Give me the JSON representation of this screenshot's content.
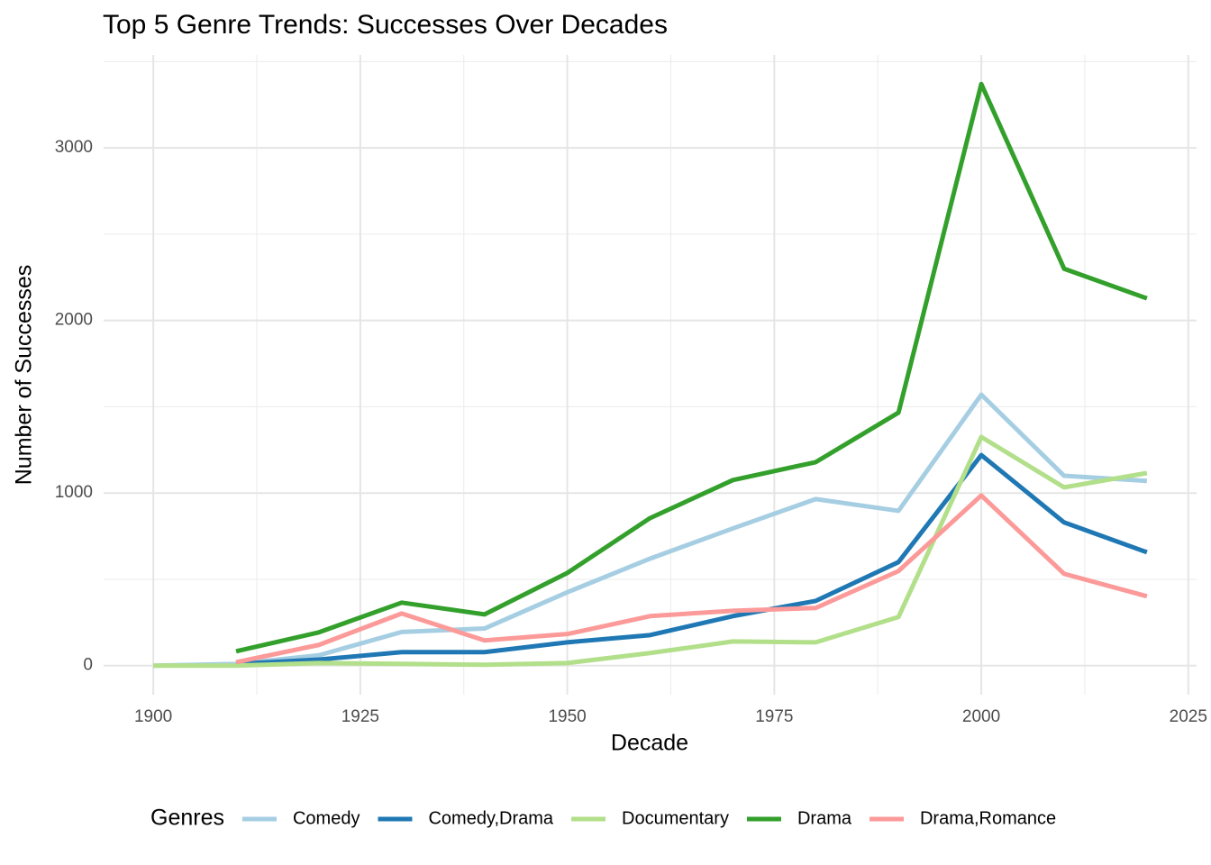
{
  "chart_data": {
    "type": "line",
    "title": "Top 5 Genre Trends: Successes Over Decades",
    "x_label": "Decade",
    "y_label": "Number of Successes",
    "legend_title": "Genres",
    "legend_position": "bottom",
    "grid": true,
    "x": [
      1900,
      1910,
      1920,
      1930,
      1940,
      1950,
      1960,
      1970,
      1980,
      1990,
      2000,
      2010,
      2020
    ],
    "series": [
      {
        "name": "Comedy",
        "color": "#a6cee3",
        "values": [
          0,
          10,
          60,
          195,
          215,
          425,
          620,
          795,
          965,
          897,
          1570,
          1100,
          1070
        ]
      },
      {
        "name": "Comedy,Drama",
        "color": "#1f78b4",
        "values": [
          null,
          10,
          35,
          78,
          78,
          135,
          177,
          287,
          375,
          600,
          1220,
          830,
          657
        ]
      },
      {
        "name": "Documentary",
        "color": "#b2df8a",
        "values": [
          0,
          0,
          15,
          10,
          5,
          15,
          73,
          140,
          135,
          282,
          1325,
          1033,
          1116
        ]
      },
      {
        "name": "Drama",
        "color": "#33a02c",
        "values": [
          null,
          83,
          193,
          365,
          297,
          537,
          855,
          1075,
          1179,
          1466,
          3370,
          2300,
          2128
        ]
      },
      {
        "name": "Drama,Romance",
        "color": "#fb9a99",
        "values": [
          null,
          20,
          120,
          302,
          146,
          183,
          287,
          318,
          334,
          548,
          986,
          532,
          402
        ]
      }
    ],
    "xlim": [
      1894,
      2026
    ],
    "xticks": [
      1900,
      1925,
      1950,
      1975,
      2000,
      2025
    ],
    "ylim": [
      -168.5,
      3538.5
    ],
    "yticks": [
      0,
      1000,
      2000,
      3000
    ]
  }
}
